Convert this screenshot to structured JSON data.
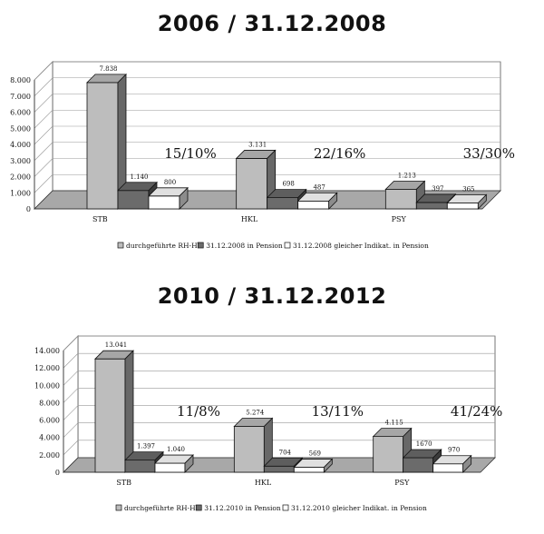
{
  "titles": [
    "2006 / 31.12.2008",
    "2010 / 31.12.2012"
  ],
  "chart_data": [
    {
      "type": "bar",
      "title": "2006 / 31.12.2008",
      "categories": [
        "STB",
        "HKL",
        "PSY"
      ],
      "ylim": [
        0,
        8000
      ],
      "yticks": [
        "0",
        "1.000",
        "2.000",
        "3.000",
        "4.000",
        "5.000",
        "6.000",
        "7.000",
        "8.000"
      ],
      "series": [
        {
          "name": "durchgeführte RH-HV",
          "values": [
            7838,
            3131,
            1213
          ],
          "labels": [
            "7.838",
            "3.131",
            "1.213"
          ],
          "color": "#bdbdbd"
        },
        {
          "name": "31.12.2008 in Pension",
          "values": [
            1140,
            698,
            397
          ],
          "labels": [
            "1.140",
            "698",
            "397"
          ],
          "color": "#6b6b6b"
        },
        {
          "name": "31.12.2008 gleicher Indikat. in Pension",
          "values": [
            800,
            487,
            365
          ],
          "labels": [
            "800",
            "487",
            "365"
          ],
          "color": "#ffffff"
        }
      ],
      "annotations": [
        "15/10%",
        "22/16%",
        "33/30%"
      ],
      "grid": true,
      "legend": "bottom"
    },
    {
      "type": "bar",
      "title": "2010 / 31.12.2012",
      "categories": [
        "STB",
        "HKL",
        "PSY"
      ],
      "ylim": [
        0,
        14000
      ],
      "yticks": [
        "0",
        "2.000",
        "4.000",
        "6.000",
        "8.000",
        "10.000",
        "12.000",
        "14.000"
      ],
      "series": [
        {
          "name": "durchgeführte RH-HV",
          "values": [
            13041,
            5274,
            4115
          ],
          "labels": [
            "13.041",
            "5.274",
            "4.115"
          ],
          "color": "#bdbdbd"
        },
        {
          "name": "31.12.2010 in Pension",
          "values": [
            1397,
            704,
            1670
          ],
          "labels": [
            "1.397",
            "704",
            "1670"
          ],
          "color": "#6b6b6b"
        },
        {
          "name": "31.12.2010 gleicher Indikat. in Pension",
          "values": [
            1040,
            569,
            970
          ],
          "labels": [
            "1.040",
            "569",
            "970"
          ],
          "color": "#ffffff"
        }
      ],
      "annotations": [
        "11/8%",
        "13/11%",
        "41/24%"
      ],
      "grid": true,
      "legend": "bottom"
    }
  ]
}
